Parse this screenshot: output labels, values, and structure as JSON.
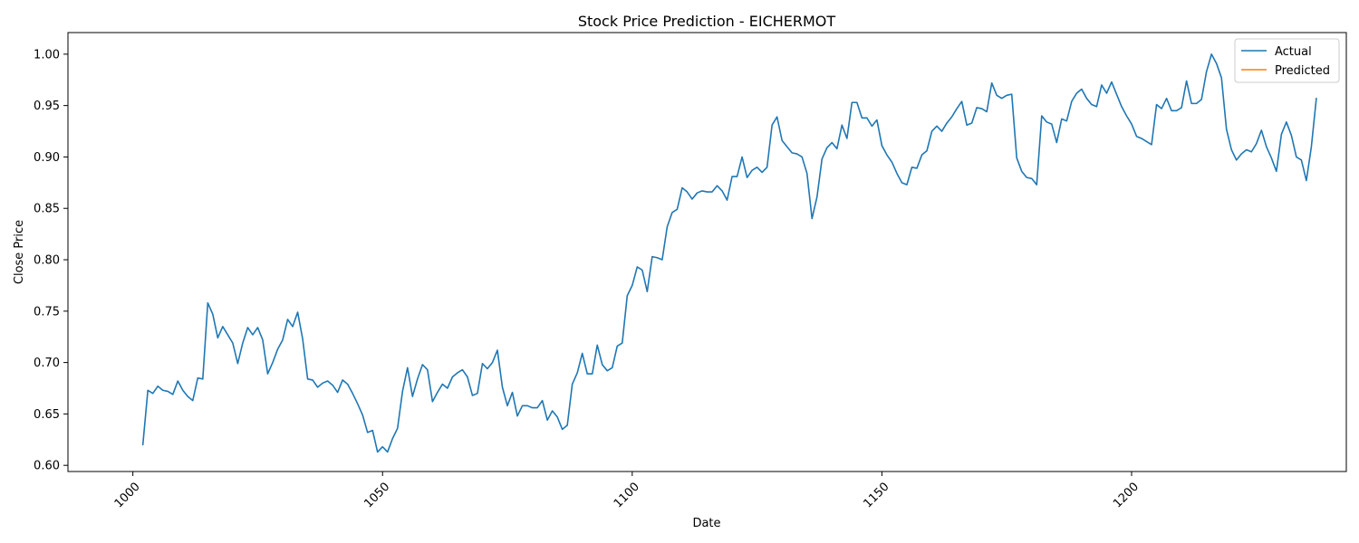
{
  "chart_data": {
    "type": "line",
    "title": "Stock Price Prediction - EICHERMOT",
    "xlabel": "Date",
    "ylabel": "Close Price",
    "xlim": [
      987,
      1243
    ],
    "ylim": [
      0.594,
      1.021
    ],
    "xticks": [
      1000,
      1050,
      1100,
      1150,
      1200
    ],
    "yticks": [
      0.6,
      0.65,
      0.7,
      0.75,
      0.8,
      0.85,
      0.9,
      0.95,
      1.0
    ],
    "ytick_labels": [
      "0.60",
      "0.65",
      "0.70",
      "0.75",
      "0.80",
      "0.85",
      "0.90",
      "0.95",
      "1.00"
    ],
    "grid": false,
    "legend": "top-right",
    "colors": {
      "actual": "#1f77b4",
      "predicted": "#ff7f0e"
    },
    "series": [
      {
        "name": "Actual",
        "x_start": 1002,
        "values": [
          0.62,
          0.673,
          0.67,
          0.677,
          0.673,
          0.672,
          0.669,
          0.682,
          0.673,
          0.667,
          0.663,
          0.685,
          0.684,
          0.758,
          0.747,
          0.724,
          0.735,
          0.727,
          0.719,
          0.699,
          0.719,
          0.734,
          0.727,
          0.734,
          0.722,
          0.689,
          0.7,
          0.713,
          0.722,
          0.742,
          0.735,
          0.749,
          0.723,
          0.684,
          0.683,
          0.676,
          0.68,
          0.682,
          0.678,
          0.671,
          0.683,
          0.679,
          0.67,
          0.66,
          0.649,
          0.632,
          0.634,
          0.613,
          0.618,
          0.613,
          0.626,
          0.636,
          0.672,
          0.695,
          0.667,
          0.684,
          0.698,
          0.693,
          0.662,
          0.671,
          0.679,
          0.675,
          0.686,
          0.69,
          0.693,
          0.686,
          0.668,
          0.67,
          0.699,
          0.694,
          0.7,
          0.712,
          0.676,
          0.658,
          0.671,
          0.648,
          0.658,
          0.658,
          0.656,
          0.656,
          0.663,
          0.644,
          0.653,
          0.647,
          0.635,
          0.639,
          0.679,
          0.69,
          0.709,
          0.689,
          0.689,
          0.717,
          0.698,
          0.692,
          0.695,
          0.716,
          0.719,
          0.765,
          0.775,
          0.793,
          0.79,
          0.769,
          0.803,
          0.802,
          0.8,
          0.832,
          0.846,
          0.849,
          0.87,
          0.866,
          0.859,
          0.865,
          0.867,
          0.866,
          0.866,
          0.872,
          0.867,
          0.858,
          0.881,
          0.881,
          0.9,
          0.88,
          0.887,
          0.89,
          0.885,
          0.89,
          0.931,
          0.939,
          0.916,
          0.91,
          0.904,
          0.903,
          0.9,
          0.884,
          0.84,
          0.861,
          0.898,
          0.909,
          0.914,
          0.908,
          0.931,
          0.918,
          0.953,
          0.953,
          0.938,
          0.938,
          0.93,
          0.936,
          0.911,
          0.902,
          0.895,
          0.884,
          0.875,
          0.873,
          0.89,
          0.889,
          0.902,
          0.906,
          0.925,
          0.93,
          0.925,
          0.933,
          0.939,
          0.947,
          0.954,
          0.931,
          0.933,
          0.948,
          0.947,
          0.944,
          0.972,
          0.96,
          0.957,
          0.96,
          0.961,
          0.899,
          0.886,
          0.88,
          0.879,
          0.873,
          0.94,
          0.934,
          0.932,
          0.914,
          0.937,
          0.935,
          0.954,
          0.962,
          0.966,
          0.957,
          0.951,
          0.949,
          0.97,
          0.962,
          0.973,
          0.961,
          0.949,
          0.94,
          0.932,
          0.92,
          0.918,
          0.915,
          0.912,
          0.951,
          0.947,
          0.957,
          0.945,
          0.945,
          0.948,
          0.974,
          0.952,
          0.952,
          0.956,
          0.983,
          1.0,
          0.991,
          0.977,
          0.927,
          0.907,
          0.897,
          0.903,
          0.907,
          0.905,
          0.913,
          0.926,
          0.91,
          0.899,
          0.886,
          0.922,
          0.934,
          0.921,
          0.9,
          0.897,
          0.877,
          0.91,
          0.957
        ]
      },
      {
        "name": "Predicted",
        "values": []
      }
    ]
  }
}
